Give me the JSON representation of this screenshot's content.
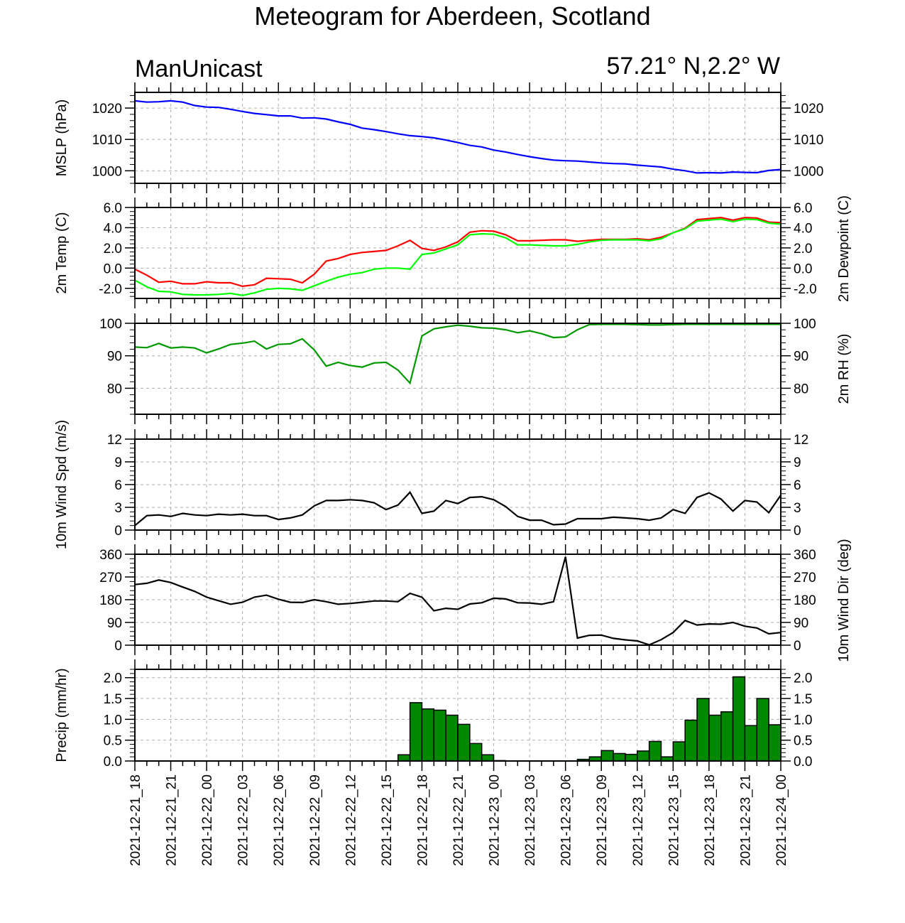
{
  "header": {
    "title": "Meteogram for Aberdeen, Scotland",
    "model": "ManUnicast",
    "location": "57.21° N,2.2° W"
  },
  "chart_data": [
    {
      "type": "line",
      "ylabel": "MSLP (hPa)",
      "ylim": [
        996,
        1025
      ],
      "yticks": [
        1000,
        1010,
        1020
      ],
      "yticklabels": [
        "1000",
        "1010",
        "1020"
      ],
      "grid": true,
      "series": [
        {
          "color": "#0000ff",
          "values": [
            1022.3,
            1021.9,
            1022.0,
            1022.3,
            1021.9,
            1020.8,
            1020.3,
            1020.2,
            1019.6,
            1018.9,
            1018.3,
            1017.9,
            1017.5,
            1017.5,
            1016.8,
            1016.9,
            1016.5,
            1015.6,
            1014.8,
            1013.6,
            1013.1,
            1012.5,
            1011.8,
            1011.2,
            1010.9,
            1010.5,
            1009.8,
            1009.0,
            1008.1,
            1007.6,
            1006.6,
            1006.0,
            1005.2,
            1004.5,
            1003.9,
            1003.4,
            1003.2,
            1003.1,
            1002.8,
            1002.5,
            1002.3,
            1002.2,
            1001.8,
            1001.5,
            1001.2,
            1000.5,
            1000.0,
            999.3,
            999.4,
            999.3,
            999.6,
            999.5,
            999.4,
            1000.1,
            1000.4
          ]
        }
      ]
    },
    {
      "type": "line",
      "ylabel": "2m Temp (C)",
      "ylabel_right": "2m Dewpoint (C)",
      "ylim": [
        -3.0,
        6.0
      ],
      "yticks": [
        -2.0,
        0.0,
        2.0,
        4.0,
        6.0
      ],
      "yticklabels": [
        "-2.0",
        "0.0",
        "2.0",
        "4.0",
        "6.0"
      ],
      "grid": true,
      "series": [
        {
          "color": "#ff0000",
          "values": [
            -0.1,
            -0.7,
            -1.4,
            -1.3,
            -1.55,
            -1.55,
            -1.35,
            -1.45,
            -1.45,
            -1.8,
            -1.65,
            -1.0,
            -1.05,
            -1.1,
            -1.45,
            -0.6,
            0.7,
            0.95,
            1.35,
            1.55,
            1.65,
            1.75,
            2.2,
            2.75,
            1.95,
            1.75,
            2.1,
            2.6,
            3.55,
            3.7,
            3.65,
            3.3,
            2.7,
            2.7,
            2.75,
            2.8,
            2.8,
            2.65,
            2.75,
            2.85,
            2.85,
            2.85,
            2.9,
            2.8,
            3.05,
            3.5,
            3.95,
            4.8,
            4.9,
            5.0,
            4.75,
            5.0,
            4.95,
            4.55,
            4.5
          ]
        },
        {
          "color": "#00ff00",
          "values": [
            -1.2,
            -1.85,
            -2.3,
            -2.35,
            -2.6,
            -2.65,
            -2.65,
            -2.6,
            -2.5,
            -2.7,
            -2.45,
            -2.1,
            -2.0,
            -2.05,
            -2.2,
            -1.75,
            -1.3,
            -0.9,
            -0.6,
            -0.45,
            -0.1,
            0.0,
            0.0,
            -0.1,
            1.35,
            1.5,
            1.9,
            2.3,
            3.3,
            3.4,
            3.35,
            3.0,
            2.3,
            2.3,
            2.25,
            2.2,
            2.2,
            2.35,
            2.6,
            2.75,
            2.8,
            2.8,
            2.8,
            2.7,
            2.9,
            3.5,
            3.9,
            4.65,
            4.75,
            4.85,
            4.6,
            4.85,
            4.8,
            4.45,
            4.35
          ]
        }
      ]
    },
    {
      "type": "line",
      "ylabel": "2m RH (%)",
      "ylim": [
        72,
        100
      ],
      "yticks": [
        80,
        90,
        100
      ],
      "yticklabels": [
        "80",
        "90",
        "100"
      ],
      "grid": true,
      "series": [
        {
          "color": "#009900",
          "values": [
            92.7,
            92.5,
            93.8,
            92.4,
            92.7,
            92.4,
            90.9,
            92.1,
            93.5,
            93.9,
            94.5,
            92.1,
            93.5,
            93.7,
            95.2,
            91.8,
            86.8,
            88.0,
            87.0,
            86.5,
            87.8,
            88.0,
            85.6,
            81.6,
            96.1,
            98.3,
            98.9,
            99.4,
            99.1,
            98.6,
            98.5,
            98.0,
            97.1,
            97.7,
            96.8,
            95.6,
            95.8,
            98.0,
            99.6,
            99.7,
            99.7,
            99.7,
            99.6,
            99.5,
            99.5,
            99.6,
            99.7,
            99.7,
            99.7,
            99.7,
            99.7,
            99.7,
            99.7,
            99.7,
            99.7
          ]
        }
      ]
    },
    {
      "type": "line",
      "ylabel": "10m Wind Spd (m/s)",
      "ylim": [
        0,
        12
      ],
      "yticks": [
        0,
        3,
        6,
        9,
        12
      ],
      "yticklabels": [
        "0",
        "3",
        "6",
        "9",
        "12"
      ],
      "grid": true,
      "series": [
        {
          "color": "#000000",
          "values": [
            0.6,
            1.9,
            2.0,
            1.8,
            2.2,
            2.0,
            1.9,
            2.1,
            2.0,
            2.1,
            1.9,
            1.9,
            1.4,
            1.6,
            2.0,
            3.2,
            3.9,
            3.9,
            4.0,
            3.9,
            3.6,
            2.7,
            3.3,
            5.0,
            2.2,
            2.5,
            3.9,
            3.5,
            4.3,
            4.4,
            4.0,
            3.1,
            1.8,
            1.3,
            1.3,
            0.7,
            0.8,
            1.5,
            1.5,
            1.5,
            1.7,
            1.6,
            1.5,
            1.3,
            1.6,
            2.7,
            2.2,
            4.3,
            4.9,
            4.1,
            2.5,
            3.9,
            3.7,
            2.3,
            4.6
          ]
        }
      ]
    },
    {
      "type": "line",
      "ylabel": "10m Wind Dir (deg)",
      "ylim": [
        0,
        360
      ],
      "yticks": [
        0,
        90,
        180,
        270,
        360
      ],
      "yticklabels": [
        "0",
        "90",
        "180",
        "270",
        "360"
      ],
      "grid": true,
      "series": [
        {
          "color": "#000000",
          "values": [
            240,
            245,
            258,
            248,
            230,
            213,
            190,
            176,
            162,
            170,
            190,
            198,
            182,
            170,
            169,
            180,
            172,
            162,
            165,
            170,
            175,
            175,
            172,
            205,
            190,
            136,
            146,
            142,
            163,
            168,
            186,
            183,
            168,
            167,
            162,
            172,
            350,
            28,
            39,
            40,
            27,
            21,
            17,
            1,
            22,
            50,
            98,
            80,
            84,
            83,
            90,
            75,
            68,
            45,
            50
          ]
        }
      ]
    },
    {
      "type": "bar",
      "ylabel": "Precip (mm/hr)",
      "ylim": [
        0,
        2.2
      ],
      "yticks": [
        0.0,
        0.5,
        1.0,
        1.5,
        2.0
      ],
      "yticklabels": [
        "0.0",
        "0.5",
        "1.0",
        "1.5",
        "2.0"
      ],
      "grid": true,
      "color": "#008800",
      "values": [
        0,
        0,
        0,
        0,
        0,
        0,
        0,
        0,
        0,
        0,
        0,
        0,
        0,
        0,
        0,
        0,
        0,
        0,
        0,
        0,
        0,
        0,
        0.15,
        1.4,
        1.25,
        1.22,
        1.1,
        0.88,
        0.42,
        0.15,
        0.01,
        0,
        0,
        0,
        0,
        0,
        0,
        0.04,
        0.1,
        0.25,
        0.18,
        0.16,
        0.24,
        0.47,
        0.1,
        0.46,
        0.98,
        1.5,
        1.1,
        1.18,
        2.02,
        0.85,
        1.5,
        0.87
      ],
      "xticklabels": [
        "2021-12-21_18",
        "2021-12-21_21",
        "2021-12-22_00",
        "2021-12-22_03",
        "2021-12-22_06",
        "2021-12-22_09",
        "2021-12-22_12",
        "2021-12-22_15",
        "2021-12-22_18",
        "2021-12-22_21",
        "2021-12-23_00",
        "2021-12-23_03",
        "2021-12-23_06",
        "2021-12-23_09",
        "2021-12-23_12",
        "2021-12-23_15",
        "2021-12-23_18",
        "2021-12-23_21",
        "2021-12-24_00"
      ]
    }
  ]
}
